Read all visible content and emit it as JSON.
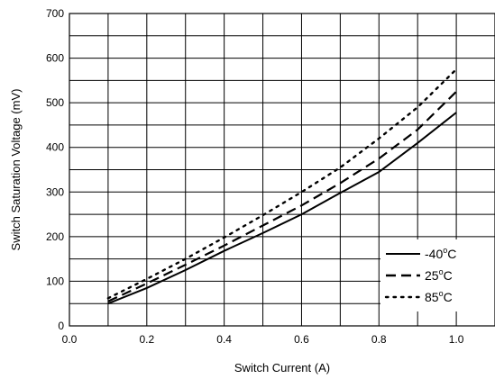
{
  "chart_data": {
    "type": "line",
    "title": "",
    "xlabel": "Switch Current (A)",
    "ylabel": "Switch Saturation Voltage (mV)",
    "xlim": [
      0.0,
      1.1
    ],
    "ylim": [
      0,
      700
    ],
    "x_ticks": [
      "0.0",
      "0.2",
      "0.4",
      "0.6",
      "0.8",
      "1.0"
    ],
    "y_ticks": [
      "0",
      "100",
      "200",
      "300",
      "400",
      "500",
      "600",
      "700"
    ],
    "grid": true,
    "legend_position": "bottom-right",
    "series": [
      {
        "name": "-40",
        "unit": "C",
        "style": "solid",
        "x": [
          0.1,
          0.2,
          0.3,
          0.4,
          0.5,
          0.6,
          0.7,
          0.8,
          0.9,
          1.0
        ],
        "y": [
          50,
          85,
          125,
          168,
          208,
          250,
          298,
          345,
          410,
          478
        ]
      },
      {
        "name": "25",
        "unit": "C",
        "style": "dashed",
        "x": [
          0.1,
          0.2,
          0.3,
          0.4,
          0.5,
          0.6,
          0.7,
          0.8,
          0.9,
          1.0
        ],
        "y": [
          55,
          95,
          137,
          180,
          225,
          270,
          320,
          375,
          440,
          525
        ]
      },
      {
        "name": "85",
        "unit": "C",
        "style": "dotted",
        "x": [
          0.1,
          0.2,
          0.3,
          0.4,
          0.5,
          0.6,
          0.7,
          0.8,
          0.9,
          1.0
        ],
        "y": [
          62,
          105,
          150,
          198,
          248,
          300,
          355,
          420,
          490,
          575
        ]
      }
    ]
  }
}
